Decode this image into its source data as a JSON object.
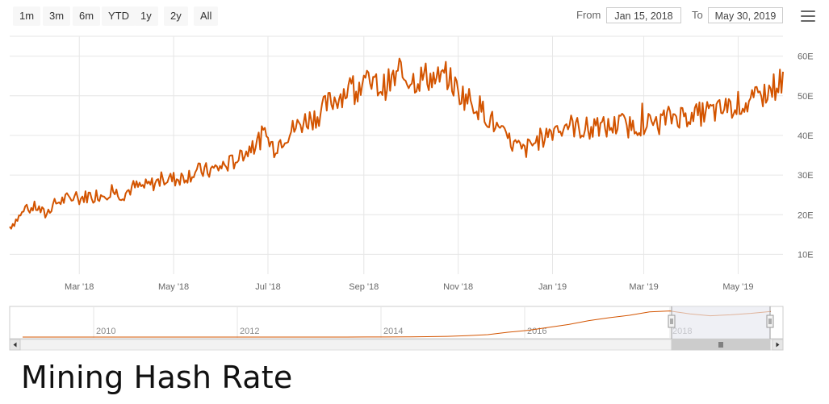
{
  "range_selector": {
    "buttons": [
      "1m",
      "3m",
      "6m",
      "YTD",
      "1y",
      "2y",
      "All"
    ],
    "from_label": "From",
    "from_value": "Jan 15, 2018",
    "to_label": "To",
    "to_value": "May 30, 2019"
  },
  "page_title": "Mining Hash Rate",
  "colors": {
    "series": "#d35400",
    "grid": "#e6e6e6",
    "navigator_mask": "#e6e8f0"
  },
  "icons": {
    "menu": "hamburger-menu-icon"
  },
  "chart_data": {
    "type": "line",
    "title": "",
    "xlabel": "",
    "ylabel": "",
    "x_range": [
      "2018-01-15",
      "2019-05-30"
    ],
    "ylim": [
      5,
      65
    ],
    "y_ticks": [
      10,
      20,
      30,
      40,
      50,
      60
    ],
    "y_tick_labels": [
      "10E",
      "20E",
      "30E",
      "40E",
      "50E",
      "60E"
    ],
    "x_ticks": [
      "2018-03-01",
      "2018-05-01",
      "2018-07-01",
      "2018-09-01",
      "2018-11-01",
      "2019-01-01",
      "2019-03-01",
      "2019-05-01"
    ],
    "x_tick_labels": [
      "Mar '18",
      "May '18",
      "Jul '18",
      "Sep '18",
      "Nov '18",
      "Jan '19",
      "Mar '19",
      "May '19"
    ],
    "grid": true,
    "legend": "none",
    "series": [
      {
        "x": [
          "2018-01-15",
          "2018-01-20",
          "2018-01-25",
          "2018-02-01",
          "2018-02-07",
          "2018-02-14",
          "2018-02-21",
          "2018-03-01",
          "2018-03-08",
          "2018-03-15",
          "2018-03-22",
          "2018-03-29",
          "2018-04-05",
          "2018-04-12",
          "2018-04-19",
          "2018-04-26",
          "2018-05-03",
          "2018-05-10",
          "2018-05-17",
          "2018-05-24",
          "2018-05-31",
          "2018-06-07",
          "2018-06-14",
          "2018-06-21",
          "2018-06-28",
          "2018-07-05",
          "2018-07-12",
          "2018-07-19",
          "2018-07-26",
          "2018-08-02",
          "2018-08-09",
          "2018-08-16",
          "2018-08-23",
          "2018-08-30",
          "2018-09-06",
          "2018-09-13",
          "2018-09-20",
          "2018-09-27",
          "2018-10-04",
          "2018-10-11",
          "2018-10-18",
          "2018-10-25",
          "2018-11-01",
          "2018-11-08",
          "2018-11-15",
          "2018-11-22",
          "2018-11-29",
          "2018-12-06",
          "2018-12-13",
          "2018-12-20",
          "2018-12-27",
          "2019-01-03",
          "2019-01-10",
          "2019-01-17",
          "2019-01-24",
          "2019-01-31",
          "2019-02-07",
          "2019-02-14",
          "2019-02-21",
          "2019-02-28",
          "2019-03-07",
          "2019-03-14",
          "2019-03-21",
          "2019-03-28",
          "2019-04-04",
          "2019-04-11",
          "2019-04-18",
          "2019-04-25",
          "2019-05-02",
          "2019-05-09",
          "2019-05-16",
          "2019-05-23",
          "2019-05-30"
        ],
        "y": [
          17,
          19,
          21,
          22,
          20,
          23,
          24,
          24,
          25,
          25,
          26,
          25,
          27,
          27,
          28,
          29,
          29,
          30,
          31,
          31,
          32,
          33,
          35,
          37,
          40,
          37,
          40,
          42,
          44,
          45,
          48,
          50,
          52,
          53,
          53,
          52,
          54,
          55,
          54,
          55,
          54,
          55,
          51,
          49,
          47,
          44,
          40,
          38,
          36,
          38,
          40,
          42,
          43,
          42,
          41,
          42,
          42,
          43,
          42,
          43,
          43,
          44,
          45,
          45,
          45,
          46,
          46,
          47,
          48,
          48,
          50,
          52,
          54
        ]
      }
    ]
  },
  "navigator": {
    "axis_labels": [
      "2010",
      "2012",
      "2014",
      "2016",
      "2018"
    ],
    "series_y": [
      0,
      0,
      0,
      0,
      0,
      0,
      0,
      0,
      0,
      0,
      0,
      0,
      0,
      0,
      0,
      0,
      0.05,
      0.1,
      0.2,
      0.4,
      0.8,
      1.5,
      3,
      5,
      10,
      14,
      20,
      26,
      34,
      40,
      45,
      52,
      54,
      48,
      44,
      46,
      49,
      53
    ]
  }
}
